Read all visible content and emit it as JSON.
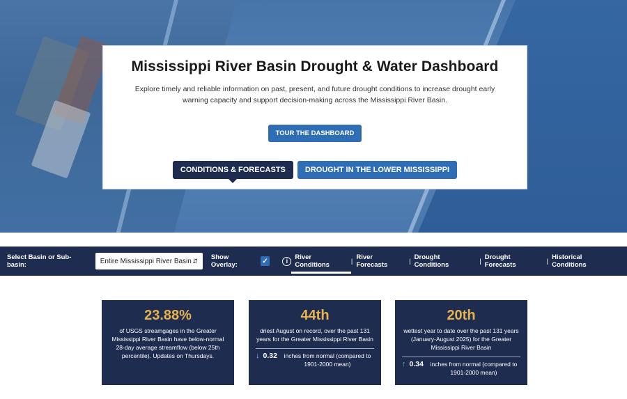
{
  "hero": {
    "title": "Mississippi River Basin Drought & Water Dashboard",
    "description": "Explore timely and reliable information on past, present, and future drought conditions to increase drought early warning capacity and support decision-making across the Mississippi River Basin.",
    "tour_button": "TOUR THE DASHBOARD",
    "tabs": [
      "CONDITIONS & FORECASTS",
      "DROUGHT IN THE LOWER MISSISSIPPI"
    ]
  },
  "navbar": {
    "basin_label": "Select Basin or Sub-basin:",
    "basin_value": "Entire Mississippi River Basin",
    "overlay_label": "Show Overlay:",
    "overlay_checked": true,
    "links": [
      "River Conditions",
      "River Forecasts",
      "Drought Conditions",
      "Drought Forecasts",
      "Historical Conditions"
    ],
    "active_link": "River Conditions"
  },
  "cards": [
    {
      "big": "23.88%",
      "desc": "of USGS streamgages in the Greater Mississippi River Basin have below-normal 28-day average streamflow (below 25th percentile). Updates on Thursdays."
    },
    {
      "big": "44th",
      "desc": "driest August on record, over the past 131 years for the Greater Mississippi River Basin",
      "delta_direction": "down",
      "delta_value": "0.32",
      "delta_text": "inches from normal (compared to 1901-2000 mean)"
    },
    {
      "big": "20th",
      "desc": "wettest year to date over the past 131 years (January-August 2025) for the Greater Mississippi River Basin",
      "delta_direction": "up",
      "delta_value": "0.34",
      "delta_text": "inches from normal (compared to 1901-2000 mean)"
    }
  ],
  "colors": {
    "navy": "#1e2c50",
    "accent_blue": "#2f6db5",
    "gold": "#e7b24c"
  }
}
